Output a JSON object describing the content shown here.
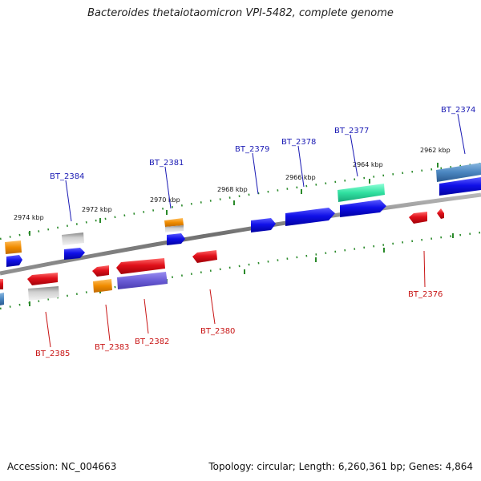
{
  "title": "Bacteroides thetaiotaomicron VPI-5482, complete genome",
  "footer": {
    "accession": "Accession: NC_004663",
    "summary": "Topology: circular; Length: 6,260,361 bp; Genes: 4,864"
  },
  "scale_labels": [
    "2974 kbp",
    "2972 kbp",
    "2970 kbp",
    "2968 kbp",
    "2966 kbp",
    "2964 kbp",
    "2962 kbp"
  ],
  "gene_labels_top": [
    "BT_2384",
    "BT_2381",
    "BT_2379",
    "BT_2378",
    "BT_2377",
    "BT_2374"
  ],
  "gene_labels_bottom": [
    "BT_2385",
    "BT_2383",
    "BT_2382",
    "BT_2380",
    "BT_2376"
  ],
  "colors": {
    "red": "#e0101a",
    "blue": "#1010e8",
    "orange": "#f08c00",
    "gray": "#b4b4b4",
    "teal": "#30e0a0",
    "purple": "#6a5cd6",
    "steel": "#4a86c0",
    "backbone": "#808080",
    "tick": "#2a8a2a"
  }
}
